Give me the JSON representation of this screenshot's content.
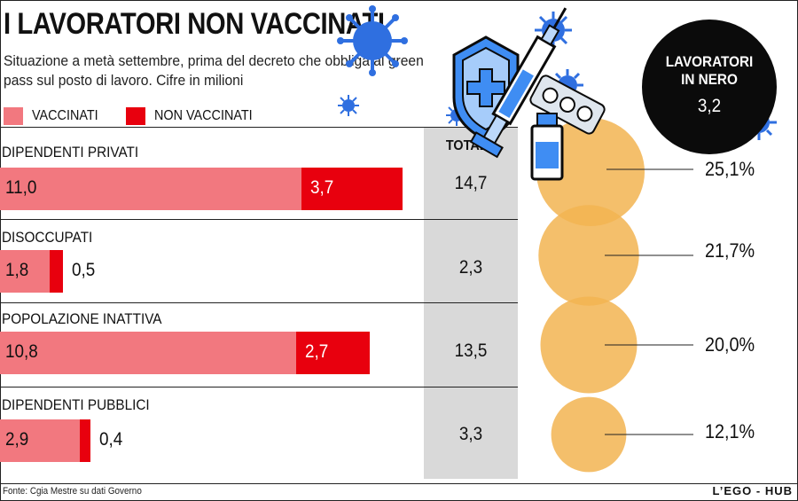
{
  "title": "I LAVORATORI NON VACCINATI",
  "subtitle": "Situazione a metà settembre, prima del decreto che obbliga al green pass sul posto di lavoro. Cifre in milioni",
  "legend": [
    {
      "label": "VACCINATI",
      "color": "#f2787f"
    },
    {
      "label": "NON VACCINATI",
      "color": "#e8000e"
    }
  ],
  "total_header": "TOTALE",
  "black_circle": {
    "label_line1": "LAVORATORI",
    "label_line2": "IN NERO",
    "value": "3,2"
  },
  "source": "Fonte: Cgia Mestre su dati Governo",
  "credit": "L’EGO - HUB",
  "icons": [
    "virus-icon",
    "shield-icon",
    "syringe-icon",
    "vial-icon",
    "pills-icon"
  ],
  "chart_data": {
    "type": "bar",
    "stacked": true,
    "orientation": "horizontal",
    "unit": "milioni",
    "categories": [
      "DIPENDENTI PRIVATI",
      "DISOCCUPATI",
      "POPOLAZIONE INATTIVA",
      "DIPENDENTI PUBBLICI"
    ],
    "series": [
      {
        "name": "VACCINATI",
        "values": [
          11.0,
          1.8,
          10.8,
          2.9
        ],
        "labels": [
          "11,0",
          "1,8",
          "10,8",
          "2,9"
        ],
        "color": "#f2787f"
      },
      {
        "name": "NON VACCINATI",
        "values": [
          3.7,
          0.5,
          2.7,
          0.4
        ],
        "labels": [
          "3,7",
          "0,5",
          "2,7",
          "0,4"
        ],
        "color": "#e8000e"
      }
    ],
    "totals": [
      "14,7",
      "2,3",
      "13,5",
      "3,3"
    ],
    "percentages": {
      "values": [
        25.1,
        21.7,
        20.0,
        12.1
      ],
      "labels": [
        "25,1%",
        "21,7%",
        "20,0%",
        "12,1%"
      ],
      "color": "#f2b451"
    }
  }
}
